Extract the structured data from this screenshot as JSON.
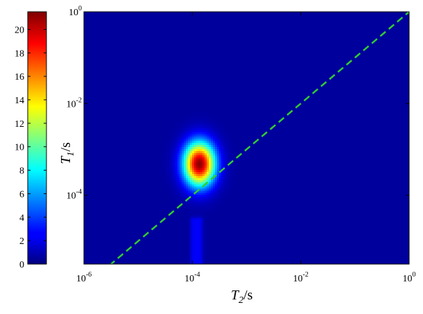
{
  "chart_data": {
    "type": "heatmap",
    "x_axis": {
      "label_base": "T",
      "label_sub": "2",
      "label_unit": "/s",
      "scale": "log",
      "range": [
        1e-06,
        1
      ],
      "ticks": [
        {
          "base": "10",
          "exp": "-6",
          "value": 1e-06
        },
        {
          "base": "10",
          "exp": "-4",
          "value": 0.0001
        },
        {
          "base": "10",
          "exp": "-2",
          "value": 0.01
        },
        {
          "base": "10",
          "exp": "0",
          "value": 1
        }
      ]
    },
    "y_axis": {
      "label_base": "T",
      "label_sub": "1",
      "label_unit": "/s",
      "scale": "log",
      "range": [
        3.16e-06,
        1
      ],
      "ticks": [
        {
          "base": "10",
          "exp": "-4",
          "value": 0.0001
        },
        {
          "base": "10",
          "exp": "-2",
          "value": 0.01
        },
        {
          "base": "10",
          "exp": "0",
          "value": 1
        }
      ]
    },
    "colorbar": {
      "colormap": "jet",
      "range": [
        0,
        21.5
      ],
      "ticks": [
        "0",
        "2",
        "4",
        "6",
        "8",
        "10",
        "12",
        "14",
        "16",
        "18",
        "20"
      ]
    },
    "background_value": 0.6,
    "peaks": [
      {
        "t2": 0.000135,
        "t1": 0.00048,
        "peak_value": 21.3,
        "sigma_x_decades": 0.2,
        "sigma_y_decades": 0.33
      },
      {
        "t2": 0.00012,
        "t1": 9e-06,
        "peak_value": 2.6,
        "sigma_x_decades": 0.1,
        "sigma_y_decades": 1.4,
        "shape": "vertical-streak"
      }
    ],
    "reference_line": {
      "style": "dashed",
      "color": "#33cc33",
      "relation": "T1 = T2",
      "from": [
        1e-06,
        1e-06
      ],
      "to": [
        1,
        1
      ]
    }
  }
}
